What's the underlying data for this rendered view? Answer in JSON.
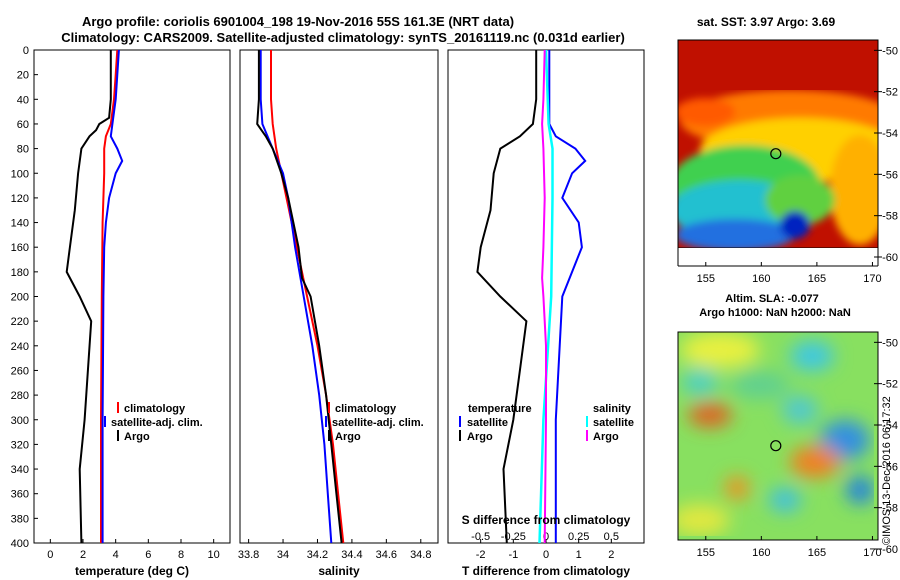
{
  "title": {
    "line1": "Argo profile: coriolis 6901004_198 19-Nov-2016 55S 161.3E (NRT data)",
    "line2": "Climatology: CARS2009. Satellite-adjusted climatology: synTS_20161119.nc (0.031d earlier)"
  },
  "watermark": "©IMOS 13-Dec-2016 06:17:32",
  "colors": {
    "climatology": "#ff0000",
    "satellite": "#0000ff",
    "argo": "#000000",
    "salinity_satellite": "#00ffff",
    "salinity_argo": "#ff00ff"
  },
  "chart_data": [
    {
      "type": "line",
      "name": "temperature",
      "xlabel": "temperature (deg C)",
      "ylabel": "",
      "xlim": [
        -1,
        11
      ],
      "ylim": [
        400,
        0
      ],
      "x_ticks": [
        "0",
        "2",
        "4",
        "6",
        "8",
        "10"
      ],
      "y_ticks": [
        "0",
        "20",
        "40",
        "60",
        "80",
        "100",
        "120",
        "140",
        "160",
        "180",
        "200",
        "220",
        "240",
        "260",
        "280",
        "300",
        "320",
        "340",
        "360",
        "380",
        "400"
      ],
      "legend": [
        "climatology",
        "satellite-adj. clim.",
        "Argo"
      ],
      "series": [
        {
          "name": "climatology",
          "color": "#ff0000",
          "depth": [
            0,
            20,
            40,
            60,
            70,
            80,
            100,
            140,
            200,
            300,
            400
          ],
          "values": [
            4.1,
            4.0,
            3.9,
            3.7,
            3.4,
            3.3,
            3.3,
            3.2,
            3.15,
            3.1,
            3.1
          ]
        },
        {
          "name": "satellite-adj. clim.",
          "color": "#0000ff",
          "depth": [
            0,
            20,
            40,
            60,
            70,
            80,
            90,
            100,
            120,
            140,
            160,
            200,
            300,
            400
          ],
          "values": [
            4.2,
            4.1,
            4.0,
            3.8,
            3.7,
            4.1,
            4.4,
            4.0,
            3.6,
            3.4,
            3.3,
            3.25,
            3.2,
            3.2
          ]
        },
        {
          "name": "Argo",
          "color": "#000000",
          "depth": [
            0,
            40,
            55,
            60,
            65,
            70,
            80,
            100,
            130,
            160,
            180,
            200,
            220,
            260,
            300,
            340,
            400
          ],
          "values": [
            3.7,
            3.7,
            3.6,
            3.0,
            2.8,
            2.4,
            1.9,
            1.7,
            1.5,
            1.2,
            1.0,
            1.8,
            2.5,
            2.3,
            2.1,
            1.8,
            1.9
          ]
        }
      ]
    },
    {
      "type": "line",
      "name": "salinity",
      "xlabel": "salinity",
      "ylabel": "",
      "xlim": [
        33.75,
        34.9
      ],
      "ylim": [
        400,
        0
      ],
      "x_ticks": [
        "33.8",
        "34",
        "34.2",
        "34.4",
        "34.6",
        "34.8"
      ],
      "legend": [
        "climatology",
        "satellite-adj. clim.",
        "Argo"
      ],
      "series": [
        {
          "name": "climatology",
          "color": "#ff0000",
          "depth": [
            0,
            40,
            60,
            80,
            120,
            160,
            200,
            240,
            280,
            320,
            360,
            400
          ],
          "values": [
            33.93,
            33.93,
            33.94,
            33.96,
            34.02,
            34.08,
            34.14,
            34.2,
            34.25,
            34.29,
            34.32,
            34.35
          ]
        },
        {
          "name": "satellite-adj. clim.",
          "color": "#0000ff",
          "depth": [
            0,
            20,
            40,
            60,
            80,
            100,
            120,
            160,
            200,
            240,
            280,
            320,
            360,
            400
          ],
          "values": [
            33.87,
            33.87,
            33.87,
            33.88,
            33.94,
            34.0,
            34.03,
            34.07,
            34.12,
            34.17,
            34.21,
            34.24,
            34.26,
            34.28
          ]
        },
        {
          "name": "Argo",
          "color": "#000000",
          "depth": [
            0,
            40,
            60,
            70,
            80,
            100,
            120,
            160,
            185,
            200,
            240,
            280,
            320,
            360,
            400
          ],
          "values": [
            33.86,
            33.86,
            33.85,
            33.9,
            33.94,
            33.99,
            34.03,
            34.09,
            34.11,
            34.16,
            34.21,
            34.25,
            34.28,
            34.31,
            34.34
          ]
        }
      ]
    },
    {
      "type": "line",
      "name": "difference",
      "xlabel": "T difference from climatology",
      "xlabel_top": "S difference from climatology",
      "xlim": [
        -3,
        3
      ],
      "ylim": [
        400,
        0
      ],
      "x_ticks": [
        "-2",
        "-1",
        "0",
        "1",
        "2"
      ],
      "x_ticks_salinity": [
        "-0.5",
        "-0.25",
        "0",
        "0.25",
        "0.5"
      ],
      "legend_left_title": "temperature",
      "legend_right_title": "salinity",
      "legend": [
        "satellite",
        "Argo",
        "satellite",
        "Argo"
      ],
      "series": [
        {
          "name": "temperature satellite",
          "color": "#0000ff",
          "depth": [
            0,
            40,
            60,
            70,
            80,
            90,
            100,
            120,
            140,
            160,
            200,
            300,
            400
          ],
          "values": [
            0.1,
            0.1,
            0.1,
            0.3,
            0.9,
            1.2,
            0.8,
            0.5,
            1.0,
            1.1,
            0.5,
            0.3,
            0.3
          ]
        },
        {
          "name": "temperature Argo",
          "color": "#000000",
          "depth": [
            0,
            40,
            60,
            70,
            80,
            100,
            130,
            160,
            180,
            200,
            220,
            260,
            300,
            340,
            400
          ],
          "values": [
            -0.3,
            -0.3,
            -0.4,
            -0.8,
            -1.4,
            -1.6,
            -1.7,
            -2.0,
            -2.1,
            -1.4,
            -0.6,
            -0.8,
            -1.0,
            -1.3,
            -1.2
          ]
        },
        {
          "name": "salinity satellite",
          "color": "#00ffff",
          "depth": [
            0,
            60,
            80,
            120,
            200,
            300,
            400
          ],
          "values": [
            0.0,
            0.02,
            0.05,
            0.05,
            0.04,
            -0.02,
            -0.05
          ]
        },
        {
          "name": "salinity Argo",
          "color": "#ff00ff",
          "depth": [
            0,
            40,
            60,
            80,
            120,
            160,
            185,
            200,
            240,
            300,
            400
          ],
          "values": [
            -0.01,
            -0.02,
            -0.03,
            -0.02,
            -0.01,
            -0.02,
            -0.03,
            -0.02,
            0.0,
            0.0,
            -0.01
          ]
        }
      ]
    },
    {
      "type": "heatmap",
      "name": "sst-map",
      "title": "sat. SST: 3.97 Argo: 3.69",
      "x_ticks": [
        "155",
        "160",
        "165",
        "170"
      ],
      "y_ticks": [
        "-50",
        "-52",
        "-54",
        "-56",
        "-58",
        "-60"
      ],
      "xlim": [
        152.5,
        170.5
      ],
      "ylim": [
        -60,
        -49.5
      ],
      "marker": {
        "lon": 161.3,
        "lat": -55.0
      }
    },
    {
      "type": "heatmap",
      "name": "sla-map",
      "title_line1": "Altim. SLA: -0.077",
      "title_line2": "Argo h1000: NaN h2000: NaN",
      "x_ticks": [
        "155",
        "160",
        "165",
        "170"
      ],
      "y_ticks": [
        "-50",
        "-52",
        "-54",
        "-56",
        "-58",
        "-60"
      ],
      "xlim": [
        152.5,
        170.5
      ],
      "ylim": [
        -60,
        -49.5
      ],
      "marker": {
        "lon": 161.3,
        "lat": -55.0
      }
    }
  ]
}
